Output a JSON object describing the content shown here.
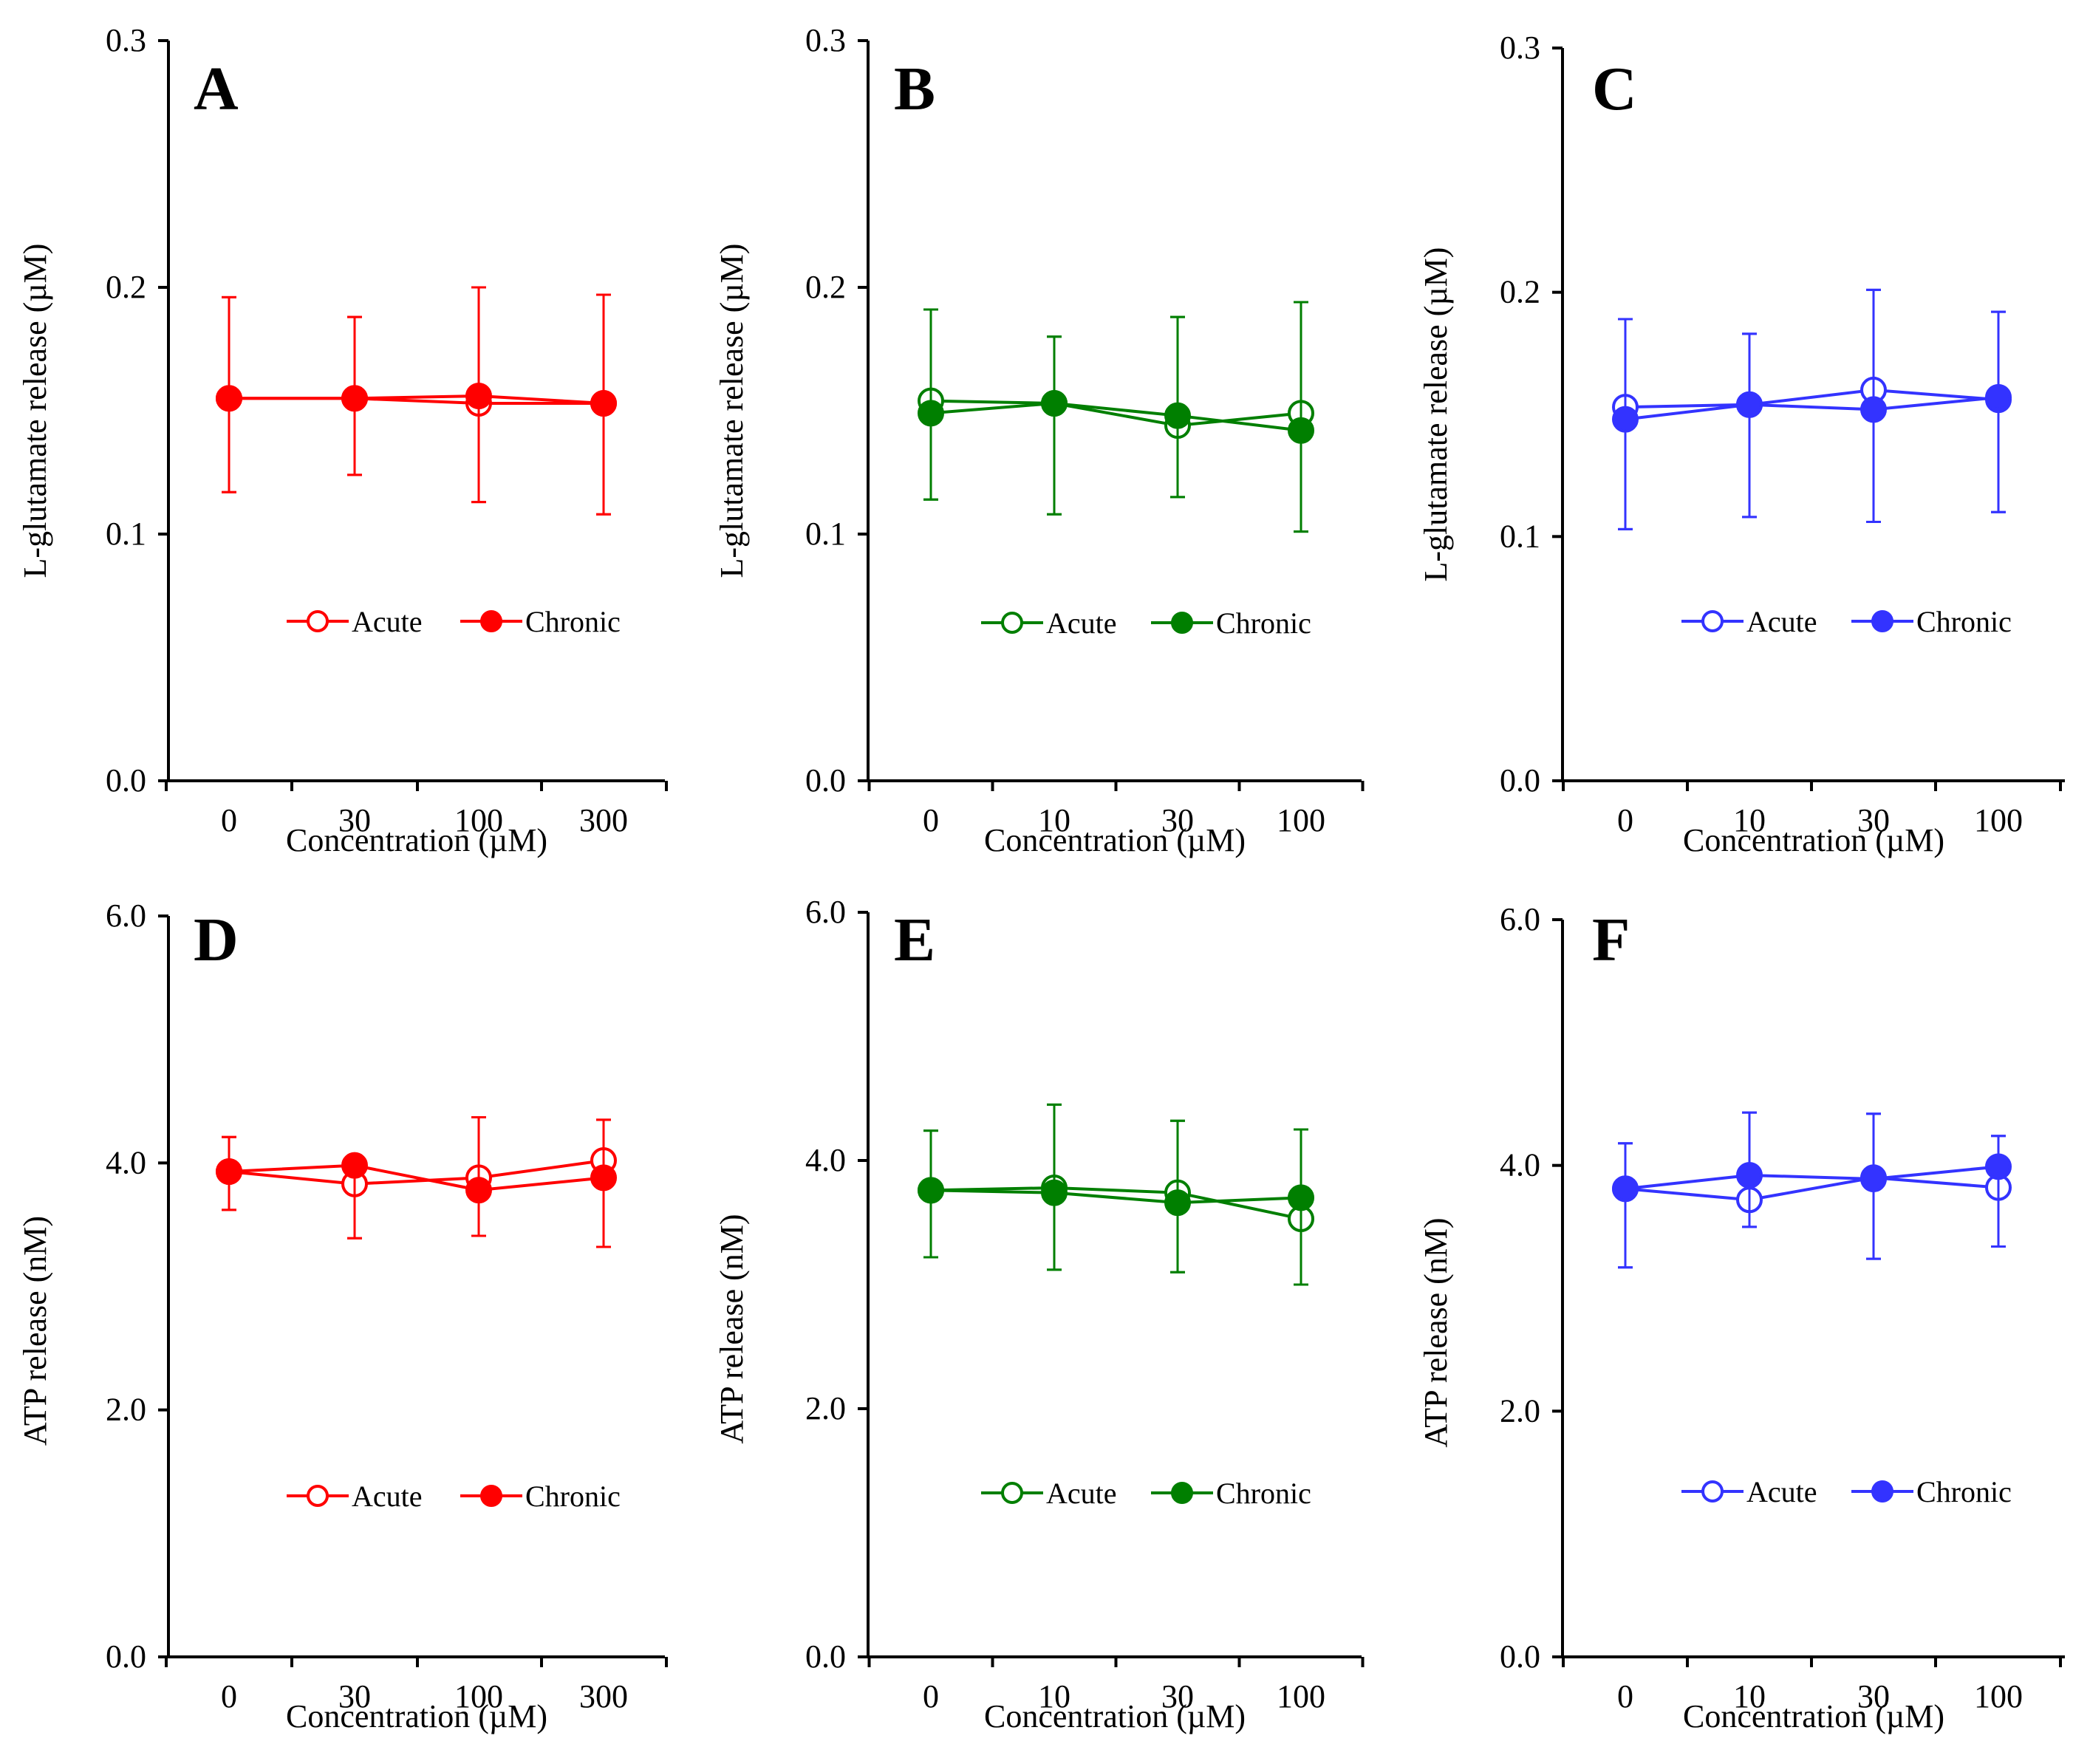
{
  "figure": {
    "xlabel": "Concentration (µM)",
    "series_names": [
      "Acute",
      "Chronic"
    ]
  },
  "chart_data": [
    {
      "panel": "A",
      "type": "line",
      "color": "#ff0000",
      "ylabel": "L-glutamate release (µM)",
      "ylim": [
        0,
        0.3
      ],
      "yticks": [
        "0.0",
        "0.1",
        "0.2",
        "0.3"
      ],
      "categories": [
        "0",
        "30",
        "100",
        "300"
      ],
      "series": [
        {
          "name": "Acute",
          "marker": "open",
          "values": [
            0.155,
            0.155,
            0.153,
            0.153
          ],
          "err_low": [
            0.038,
            0.031,
            0.04,
            0.045
          ],
          "err_high": [
            0.041,
            0.033,
            0.047,
            0.044
          ]
        },
        {
          "name": "Chronic",
          "marker": "filled",
          "values": [
            0.155,
            0.155,
            0.156,
            0.153
          ],
          "err_low": [
            0.038,
            0.031,
            0.043,
            0.045
          ],
          "err_high": [
            0.041,
            0.033,
            0.044,
            0.044
          ]
        }
      ]
    },
    {
      "panel": "B",
      "type": "line",
      "color": "#007f00",
      "ylabel": "L-glutamate release (µM)",
      "ylim": [
        0,
        0.3
      ],
      "yticks": [
        "0.0",
        "0.1",
        "0.2",
        "0.3"
      ],
      "categories": [
        "0",
        "10",
        "30",
        "100"
      ],
      "series": [
        {
          "name": "Acute",
          "marker": "open",
          "values": [
            0.154,
            0.153,
            0.144,
            0.149
          ],
          "err_low": [
            0.04,
            0.045,
            0.029,
            0.048
          ],
          "err_high": [
            0.037,
            0.027,
            0.044,
            0.045
          ]
        },
        {
          "name": "Chronic",
          "marker": "filled",
          "values": [
            0.149,
            0.153,
            0.148,
            0.142
          ],
          "err_low": [
            0.035,
            0.045,
            0.033,
            0.041
          ],
          "err_high": [
            0.042,
            0.027,
            0.04,
            0.052
          ]
        }
      ]
    },
    {
      "panel": "C",
      "type": "line",
      "color": "#3333ff",
      "ylabel": "L-glutamate release (µM)",
      "ylim": [
        0,
        0.3
      ],
      "yticks": [
        "0.0",
        "0.1",
        "0.2",
        "0.3"
      ],
      "categories": [
        "0",
        "10",
        "30",
        "100"
      ],
      "series": [
        {
          "name": "Acute",
          "marker": "open",
          "values": [
            0.153,
            0.154,
            0.16,
            0.156
          ],
          "err_low": [
            0.05,
            0.046,
            0.054,
            0.046
          ],
          "err_high": [
            0.036,
            0.029,
            0.041,
            0.036
          ]
        },
        {
          "name": "Chronic",
          "marker": "filled",
          "values": [
            0.148,
            0.154,
            0.152,
            0.157
          ],
          "err_low": [
            0.045,
            0.046,
            0.046,
            0.047
          ],
          "err_high": [
            0.041,
            0.029,
            0.049,
            0.035
          ]
        }
      ]
    },
    {
      "panel": "D",
      "type": "line",
      "color": "#ff0000",
      "ylabel": "ATP release (nM)",
      "ylim": [
        0,
        6
      ],
      "yticks": [
        "0.0",
        "2.0",
        "4.0",
        "6.0"
      ],
      "categories": [
        "0",
        "30",
        "100",
        "300"
      ],
      "series": [
        {
          "name": "Acute",
          "marker": "open",
          "values": [
            3.93,
            3.83,
            3.88,
            4.02
          ],
          "err_low": [
            0.31,
            0.44,
            0.47,
            0.7
          ],
          "err_high": [
            0.28,
            0.15,
            0.49,
            0.33
          ]
        },
        {
          "name": "Chronic",
          "marker": "filled",
          "values": [
            3.93,
            3.98,
            3.78,
            3.88
          ],
          "err_low": [
            0.31,
            0.59,
            0.37,
            0.56
          ],
          "err_high": [
            0.28,
            0.0,
            0.59,
            0.47
          ]
        }
      ]
    },
    {
      "panel": "E",
      "type": "line",
      "color": "#007f00",
      "ylabel": "ATP release (nM)",
      "ylim": [
        0,
        6
      ],
      "yticks": [
        "0.0",
        "2.0",
        "4.0",
        "6.0"
      ],
      "categories": [
        "0",
        "10",
        "30",
        "100"
      ],
      "series": [
        {
          "name": "Acute",
          "marker": "open",
          "values": [
            3.76,
            3.78,
            3.74,
            3.53
          ],
          "err_low": [
            0.54,
            0.66,
            0.64,
            0.53
          ],
          "err_high": [
            0.48,
            0.67,
            0.58,
            0.72
          ]
        },
        {
          "name": "Chronic",
          "marker": "filled",
          "values": [
            3.76,
            3.74,
            3.66,
            3.7
          ],
          "err_low": [
            0.54,
            0.62,
            0.56,
            0.7
          ],
          "err_high": [
            0.48,
            0.71,
            0.66,
            0.55
          ]
        }
      ]
    },
    {
      "panel": "F",
      "type": "line",
      "color": "#3333ff",
      "ylabel": "ATP release (nM)",
      "ylim": [
        0,
        6
      ],
      "yticks": [
        "0.0",
        "2.0",
        "4.0",
        "6.0"
      ],
      "categories": [
        "0",
        "10",
        "30",
        "100"
      ],
      "series": [
        {
          "name": "Acute",
          "marker": "open",
          "values": [
            3.81,
            3.72,
            3.9,
            3.82
          ],
          "err_low": [
            0.64,
            0.22,
            0.66,
            0.48
          ],
          "err_high": [
            0.37,
            0.71,
            0.52,
            0.42
          ]
        },
        {
          "name": "Chronic",
          "marker": "filled",
          "values": [
            3.81,
            3.92,
            3.89,
            3.99
          ],
          "err_low": [
            0.64,
            0.42,
            0.65,
            0.65
          ],
          "err_high": [
            0.37,
            0.51,
            0.53,
            0.25
          ]
        }
      ]
    }
  ]
}
